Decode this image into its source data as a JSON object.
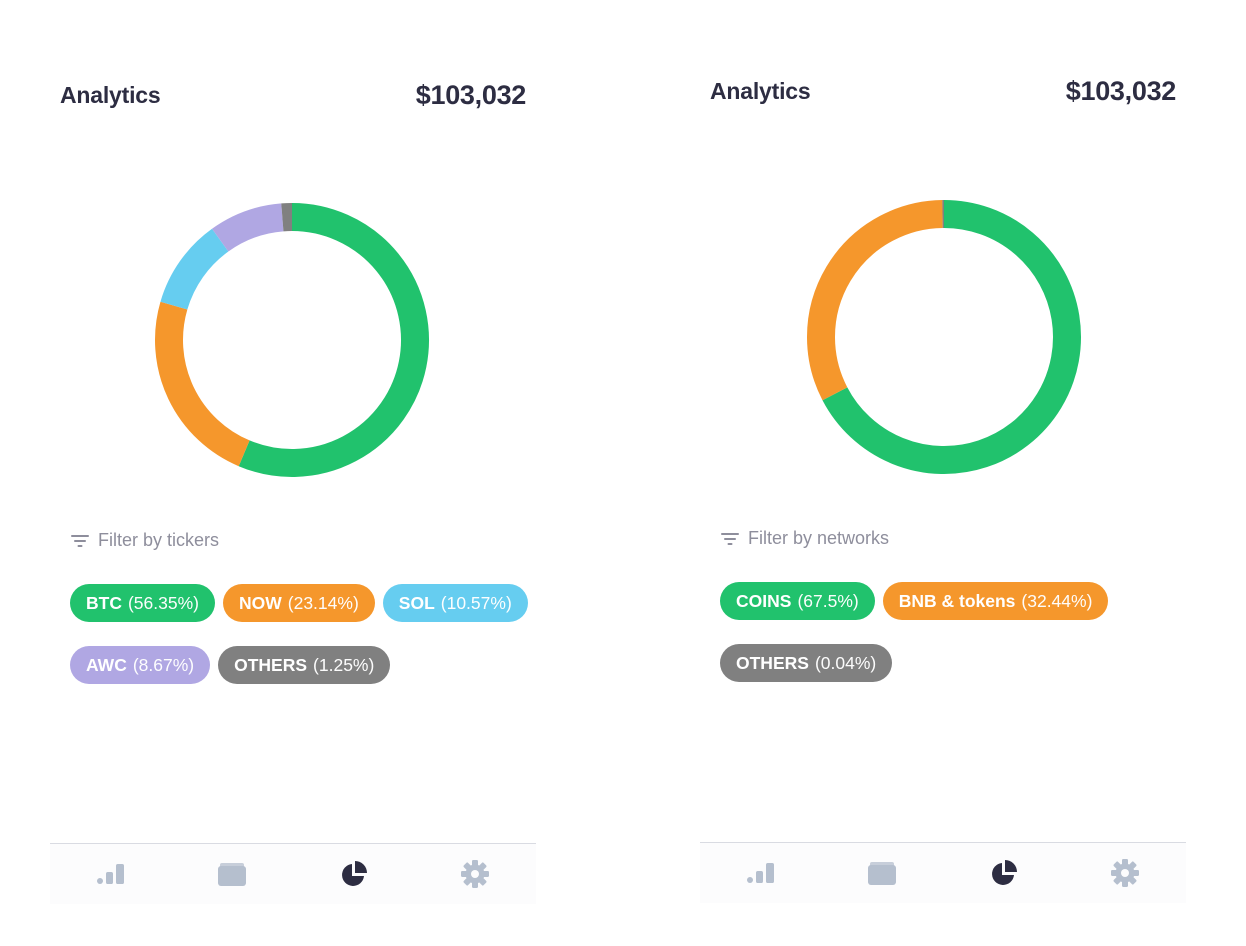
{
  "screens": [
    {
      "id": "tickers",
      "title": "Analytics",
      "total": "$103,032",
      "filter_label": "Filter by tickers",
      "chart_data": {
        "type": "pie",
        "categories": [
          "BTC",
          "NOW",
          "SOL",
          "AWC",
          "OTHERS"
        ],
        "values": [
          56.35,
          23.14,
          10.57,
          8.67,
          1.25
        ],
        "colors": [
          "#21c26d",
          "#f5972c",
          "#66cdf0",
          "#b0a7e3",
          "#808080"
        ]
      },
      "chips": [
        {
          "ticker": "BTC",
          "pct": "(56.35%)",
          "color": "#21c26d"
        },
        {
          "ticker": "NOW",
          "pct": "(23.14%)",
          "color": "#f5972c"
        },
        {
          "ticker": "SOL",
          "pct": "(10.57%)",
          "color": "#66cdf0"
        },
        {
          "ticker": "AWC",
          "pct": "(8.67%)",
          "color": "#b0a7e3"
        },
        {
          "ticker": "OTHERS",
          "pct": "(1.25%)",
          "color": "#808080"
        }
      ]
    },
    {
      "id": "networks",
      "title": "Analytics",
      "total": "$103,032",
      "filter_label": "Filter by networks",
      "chart_data": {
        "type": "pie",
        "categories": [
          "COINS",
          "BNB & tokens",
          "OTHERS"
        ],
        "values": [
          67.5,
          32.44,
          0.04
        ],
        "colors": [
          "#21c26d",
          "#f5972c",
          "#808080"
        ]
      },
      "chips": [
        {
          "ticker": "COINS",
          "pct": "(67.5%)",
          "color": "#21c26d"
        },
        {
          "ticker": "BNB & tokens",
          "pct": "(32.44%)",
          "color": "#f5972c"
        },
        {
          "ticker": "OTHERS",
          "pct": "(0.04%)",
          "color": "#808080"
        }
      ]
    }
  ],
  "tabbar": {
    "tabs": [
      {
        "icon": "bar-chart-icon",
        "active": false
      },
      {
        "icon": "wallet-icon",
        "active": false
      },
      {
        "icon": "pie-chart-icon",
        "active": true
      },
      {
        "icon": "gear-icon",
        "active": false
      }
    ],
    "active_color": "#2d2d42",
    "inactive_color": "#b5bfce"
  },
  "colors": {
    "text": "#2d2d42",
    "muted": "#8e8e9c"
  }
}
